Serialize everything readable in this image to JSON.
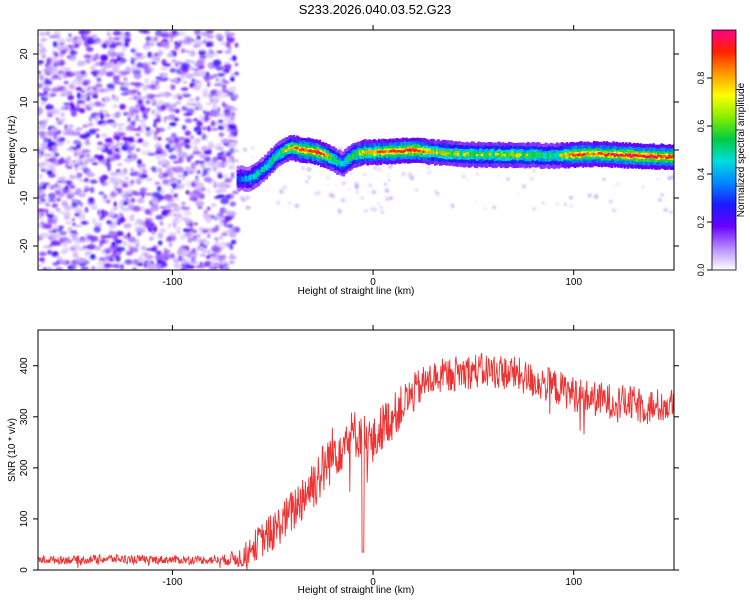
{
  "figure": {
    "title": "S233.2026.040.03.52.G23"
  },
  "chart_data": [
    {
      "type": "heatmap",
      "xlabel": "Height of straight line (km)",
      "ylabel": "Frequency (Hz)",
      "xlim": [
        -167,
        150
      ],
      "ylim": [
        -25,
        25
      ],
      "xticks": [
        -100,
        0,
        100
      ],
      "yticks": [
        -20,
        -10,
        0,
        10,
        20
      ],
      "colorbar": {
        "label": "Normalized spectral amplitude",
        "range": [
          0,
          1
        ],
        "ticks": [
          0.0,
          0.2,
          0.4,
          0.6,
          0.8
        ],
        "colors": [
          "#ffffff",
          "#b58cff",
          "#6a00ff",
          "#1a1aff",
          "#0088ff",
          "#00dddd",
          "#00cc44",
          "#88ee00",
          "#ffff00",
          "#ff9900",
          "#ff2200",
          "#ff0088"
        ]
      },
      "noise_region_x": [
        -167,
        -68
      ],
      "ridge": {
        "x": [
          -68,
          -62,
          -55,
          -48,
          -42,
          -35,
          -28,
          -22,
          -16,
          -10,
          -5,
          0,
          10,
          20,
          30,
          50,
          70,
          90,
          100,
          110,
          130,
          150
        ],
        "y": [
          -6,
          -6,
          -4,
          -1,
          0.5,
          0,
          -0.5,
          -1.5,
          -3,
          -1,
          -0.5,
          -0.5,
          -0.3,
          0,
          -0.5,
          -1,
          -1,
          -1.2,
          -1,
          -0.8,
          -1.2,
          -1.5
        ],
        "amplitude": [
          0.3,
          0.4,
          0.45,
          0.5,
          0.6,
          0.75,
          0.8,
          0.6,
          0.45,
          0.55,
          0.65,
          0.7,
          0.75,
          0.8,
          0.6,
          0.55,
          0.6,
          0.5,
          0.75,
          0.7,
          0.8,
          0.75
        ]
      }
    },
    {
      "type": "line",
      "xlabel": "Height of straight line (km)",
      "ylabel": "SNR (10 * v/v)",
      "xlim": [
        -167,
        150
      ],
      "ylim": [
        0,
        470
      ],
      "xticks": [
        -100,
        0,
        100
      ],
      "yticks": [
        0,
        100,
        200,
        300,
        400
      ],
      "color": "#ee3333",
      "series": [
        {
          "name": "SNR",
          "x": [
            -167,
            -150,
            -130,
            -110,
            -90,
            -75,
            -65,
            -60,
            -55,
            -50,
            -45,
            -40,
            -35,
            -30,
            -25,
            -20,
            -15,
            -10,
            -5,
            0,
            5,
            10,
            15,
            20,
            25,
            30,
            40,
            50,
            60,
            70,
            80,
            90,
            100,
            110,
            120,
            130,
            140,
            150
          ],
          "values": [
            20,
            20,
            22,
            20,
            20,
            20,
            25,
            45,
            60,
            75,
            95,
            115,
            145,
            170,
            195,
            230,
            250,
            265,
            270,
            245,
            285,
            300,
            325,
            345,
            365,
            375,
            385,
            390,
            390,
            385,
            370,
            360,
            345,
            335,
            330,
            325,
            320,
            325
          ],
          "noise_amplitude": [
            8,
            8,
            9,
            8,
            8,
            9,
            22,
            30,
            35,
            40,
            40,
            45,
            50,
            55,
            55,
            55,
            55,
            50,
            50,
            50,
            45,
            45,
            40,
            40,
            35,
            35,
            35,
            35,
            35,
            35,
            35,
            35,
            35,
            35,
            35,
            35,
            35,
            35
          ]
        }
      ]
    }
  ]
}
